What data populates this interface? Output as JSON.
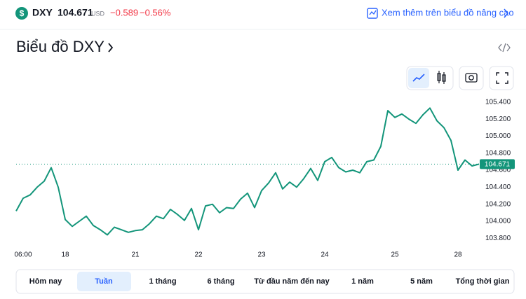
{
  "header": {
    "symbol": "DXY",
    "price": "104.671",
    "currency": "USD",
    "change": "−0.589",
    "change_percent": "−0.56%",
    "advanced_link": "Xem thêm trên biểu đồ nâng cao"
  },
  "title": "Biểu đồ DXY",
  "chart_data": {
    "type": "line",
    "categories": [
      null,
      "06:00",
      null,
      null,
      null,
      null,
      null,
      "18",
      null,
      null,
      null,
      null,
      null,
      null,
      null,
      null,
      null,
      "21",
      null,
      null,
      null,
      null,
      null,
      null,
      null,
      null,
      "22",
      null,
      null,
      null,
      null,
      null,
      null,
      null,
      null,
      "23",
      null,
      null,
      null,
      null,
      null,
      null,
      null,
      null,
      "24",
      null,
      null,
      null,
      null,
      null,
      null,
      null,
      null,
      null,
      "25",
      null,
      null,
      null,
      null,
      null,
      null,
      null,
      null,
      "28",
      null,
      null,
      null
    ],
    "series": [
      {
        "name": "DXY",
        "color": "#13957a",
        "values": [
          104.12,
          104.27,
          104.31,
          104.4,
          104.47,
          104.63,
          104.4,
          104.02,
          103.94,
          104.0,
          104.06,
          103.95,
          103.9,
          103.84,
          103.93,
          103.9,
          103.87,
          103.89,
          103.9,
          103.97,
          104.06,
          104.03,
          104.14,
          104.08,
          104.01,
          104.15,
          103.9,
          104.18,
          104.2,
          104.1,
          104.16,
          104.15,
          104.26,
          104.33,
          104.16,
          104.36,
          104.45,
          104.57,
          104.38,
          104.46,
          104.4,
          104.5,
          104.62,
          104.48,
          104.7,
          104.75,
          104.63,
          104.58,
          104.6,
          104.57,
          104.7,
          104.72,
          104.88,
          105.3,
          105.22,
          105.26,
          105.2,
          105.15,
          105.25,
          105.33,
          105.18,
          105.1,
          104.95,
          104.6,
          104.72,
          104.65,
          104.671
        ]
      }
    ],
    "ylim": [
      103.72,
      105.53
    ],
    "yticks": [
      {
        "value": 103.8,
        "label": "103.800"
      },
      {
        "value": 104.0,
        "label": "104.000"
      },
      {
        "value": 104.2,
        "label": "104.200"
      },
      {
        "value": 104.4,
        "label": "104.400"
      },
      {
        "value": 104.6,
        "label": "104.600"
      },
      {
        "value": 104.8,
        "label": "104.800"
      },
      {
        "value": 105.0,
        "label": "105.000"
      },
      {
        "value": 105.2,
        "label": "105.200"
      },
      {
        "value": 105.4,
        "label": "105.400"
      }
    ],
    "grid": false
  },
  "tabs": [
    "Hôm nay",
    "Tuần",
    "1 tháng",
    "6 tháng",
    "Từ đầu năm đến nay",
    "1 năm",
    "5 năm",
    "Tổng thời gian"
  ],
  "active_tab": 1
}
